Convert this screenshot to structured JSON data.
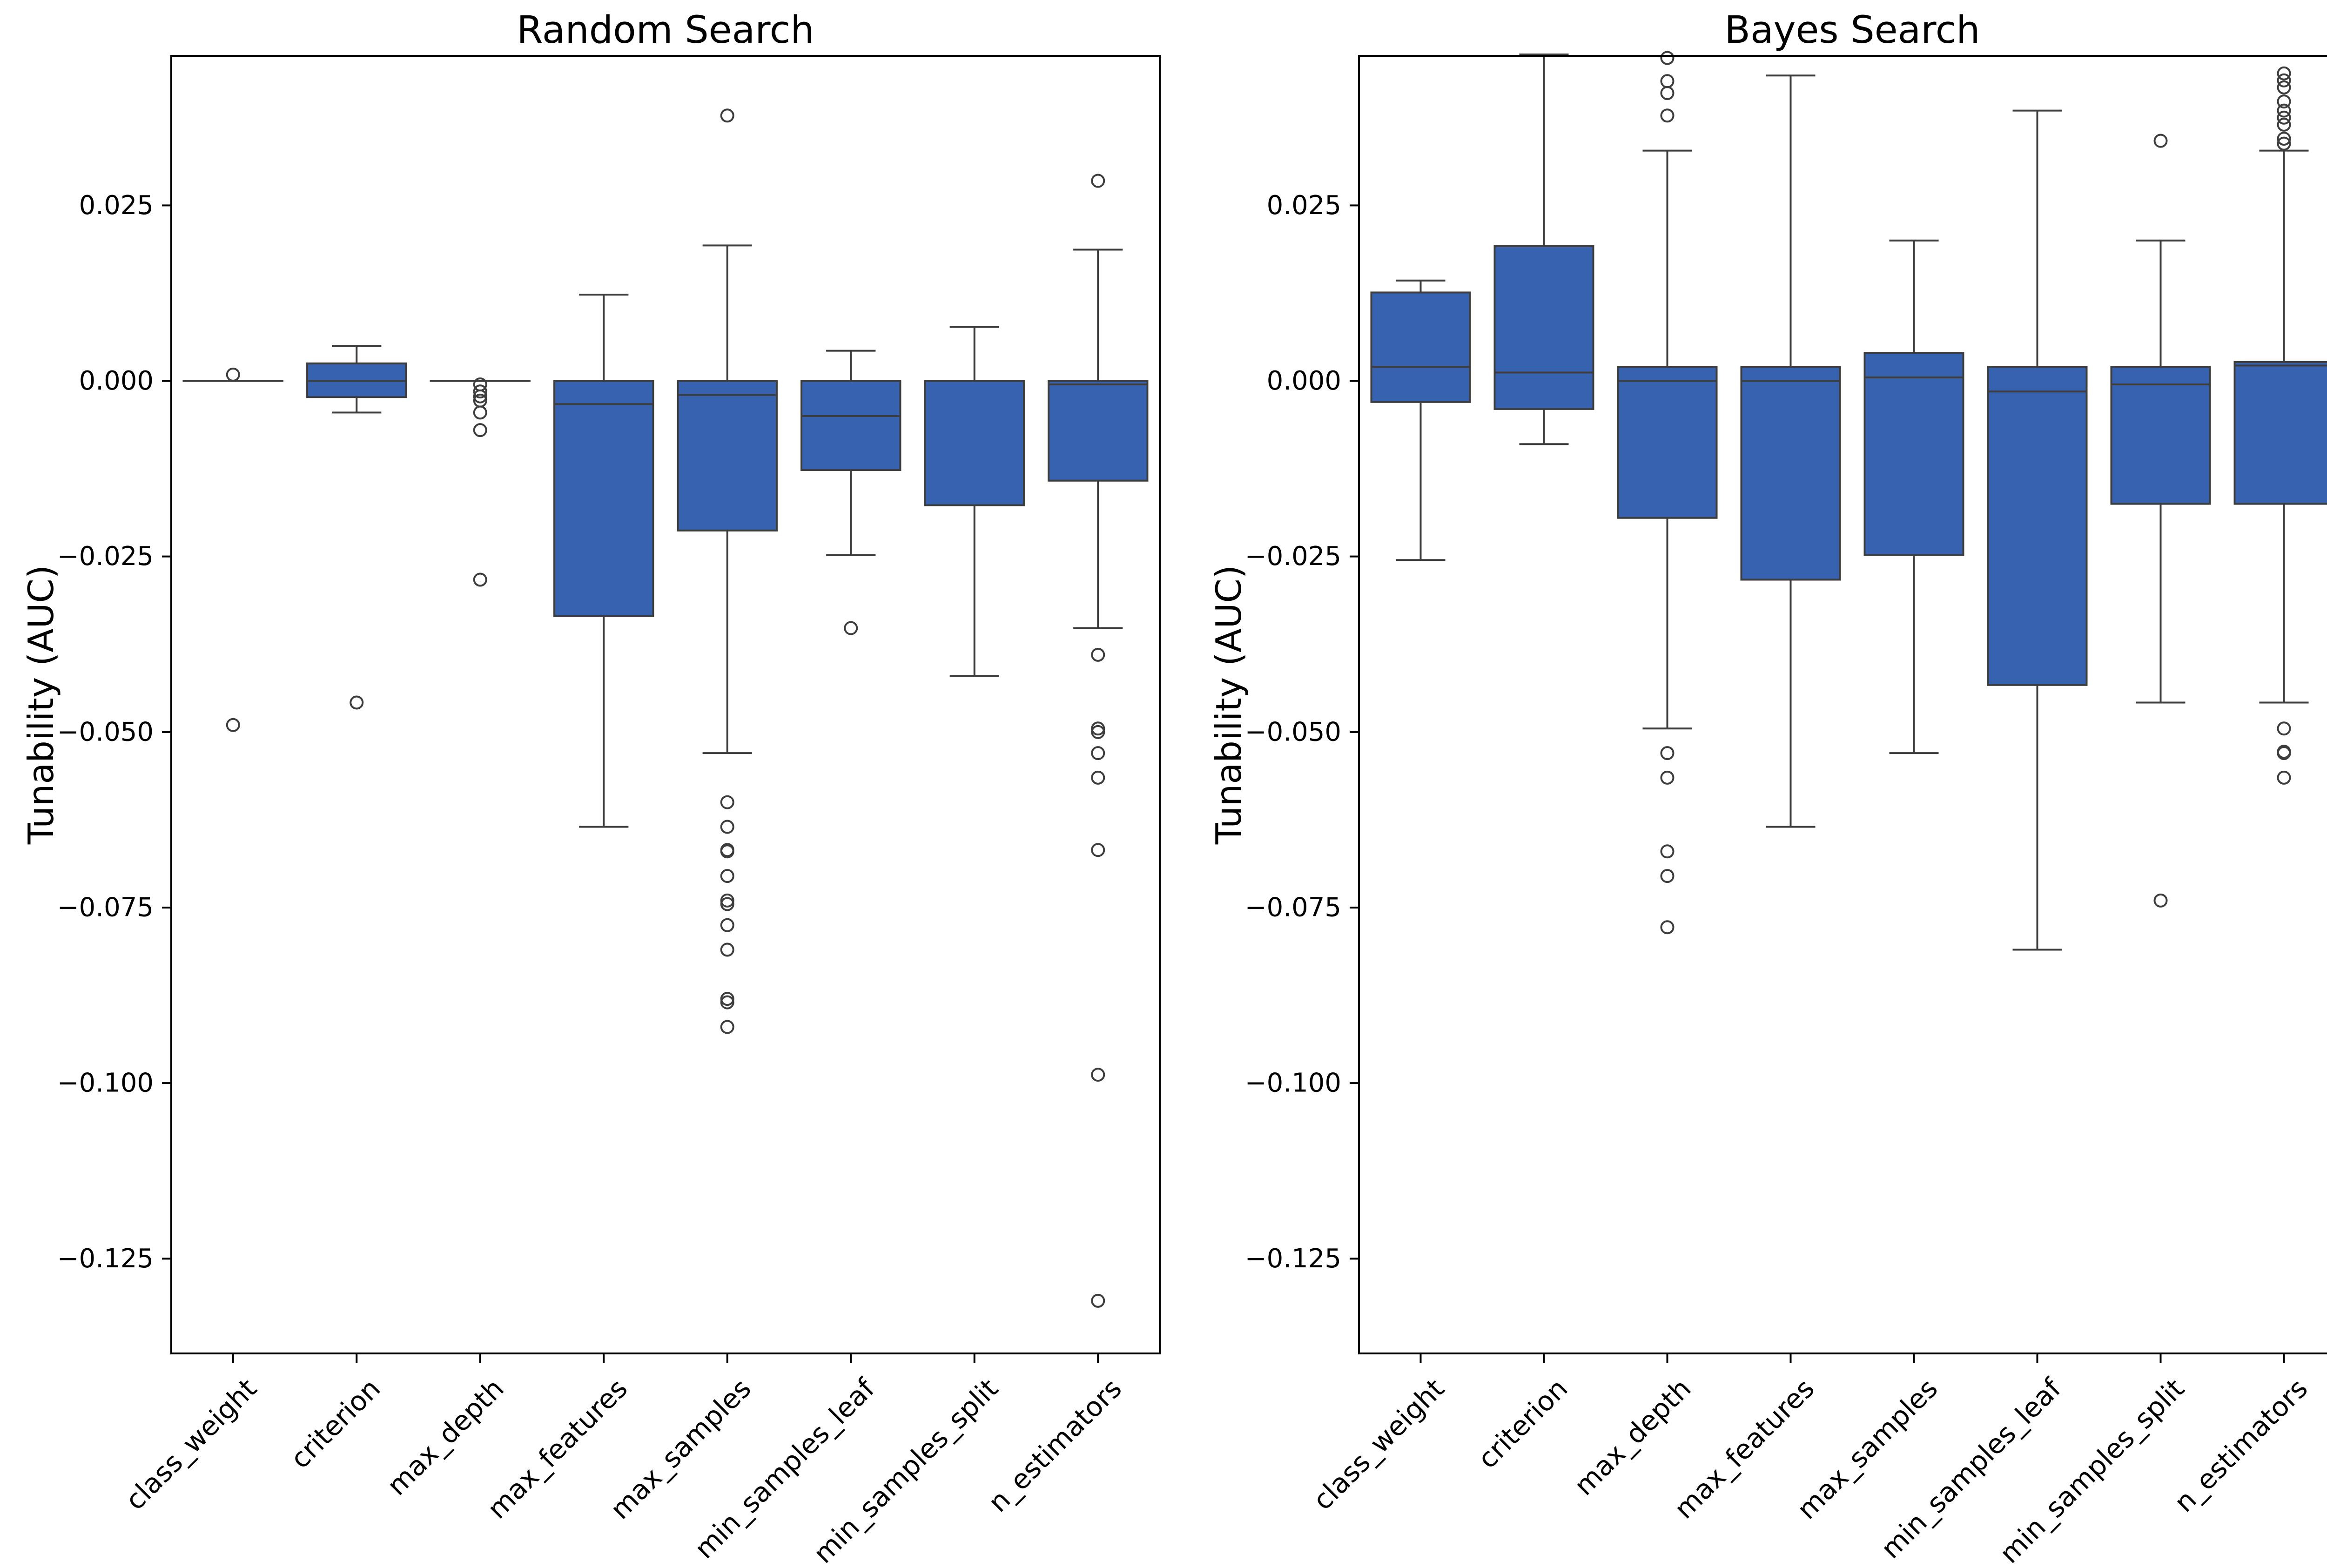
{
  "colors": {
    "box_fill": "#3662B0",
    "line": "#3d3d3d",
    "outlier_fill": "none"
  },
  "chart_data": [
    {
      "type": "box",
      "title": "Random Search",
      "ylabel": "Tunability (AUC)",
      "ylim": [
        -0.1385,
        0.0463
      ],
      "yticks": [
        0.025,
        0.0,
        -0.025,
        -0.05,
        -0.075,
        -0.1,
        -0.125
      ],
      "ytick_labels": [
        "0.025",
        "0.000",
        "−0.025",
        "−0.050",
        "−0.075",
        "−0.100",
        "−0.125"
      ],
      "categories": [
        "class_weight",
        "criterion",
        "max_depth",
        "max_features",
        "max_samples",
        "min_samples_leaf",
        "min_samples_split",
        "n_estimators"
      ],
      "boxes": [
        {
          "q1": 0.0,
          "median": 0.0,
          "q3": 0.0,
          "whislo": 0.0,
          "whishi": 0.0,
          "fliers": [
            0.0009,
            -0.049
          ]
        },
        {
          "q1": -0.0023,
          "median": 0.0,
          "q3": 0.0025,
          "whislo": -0.0045,
          "whishi": 0.005,
          "fliers": [
            -0.0458
          ]
        },
        {
          "q1": 0.0,
          "median": 0.0,
          "q3": 0.0,
          "whislo": 0.0,
          "whishi": 0.0,
          "fliers": [
            -0.0005,
            -0.0015,
            -0.0022,
            -0.0028,
            -0.0045,
            -0.007,
            -0.0283
          ]
        },
        {
          "q1": -0.0335,
          "median": -0.0033,
          "q3": 0.0,
          "whislo": -0.0635,
          "whishi": 0.0123,
          "fliers": []
        },
        {
          "q1": -0.0213,
          "median": -0.002,
          "q3": 0.0,
          "whislo": -0.053,
          "whishi": 0.0193,
          "fliers": [
            0.0378,
            -0.06,
            -0.0635,
            -0.0668,
            -0.067,
            -0.0705,
            -0.074,
            -0.0745,
            -0.0775,
            -0.081,
            -0.088,
            -0.0885,
            -0.092
          ]
        },
        {
          "q1": -0.0127,
          "median": -0.005,
          "q3": 0.0,
          "whislo": -0.0248,
          "whishi": 0.0043,
          "fliers": [
            -0.0352
          ]
        },
        {
          "q1": -0.0177,
          "median": 0.0,
          "q3": 0.0,
          "whislo": -0.042,
          "whishi": 0.0077,
          "fliers": []
        },
        {
          "q1": -0.0142,
          "median": -0.0005,
          "q3": 0.0,
          "whislo": -0.0352,
          "whishi": 0.0187,
          "fliers": [
            0.0285,
            -0.039,
            -0.0495,
            -0.05,
            -0.053,
            -0.0565,
            -0.0668,
            -0.0988,
            -0.131
          ]
        }
      ]
    },
    {
      "type": "box",
      "title": "Bayes Search",
      "ylabel": "Tunability (AUC)",
      "ylim": [
        -0.1385,
        0.0463
      ],
      "yticks": [
        0.025,
        0.0,
        -0.025,
        -0.05,
        -0.075,
        -0.1,
        -0.125
      ],
      "ytick_labels": [
        "0.025",
        "0.000",
        "−0.025",
        "−0.050",
        "−0.075",
        "−0.100",
        "−0.125"
      ],
      "categories": [
        "class_weight",
        "criterion",
        "max_depth",
        "max_features",
        "max_samples",
        "min_samples_leaf",
        "min_samples_split",
        "n_estimators"
      ],
      "boxes": [
        {
          "q1": -0.003,
          "median": 0.002,
          "q3": 0.0126,
          "whislo": -0.0255,
          "whishi": 0.0143,
          "fliers": []
        },
        {
          "q1": -0.004,
          "median": 0.0012,
          "q3": 0.0192,
          "whislo": -0.009,
          "whishi": 0.0465,
          "fliers": []
        },
        {
          "q1": -0.0195,
          "median": 0.0,
          "q3": 0.002,
          "whislo": -0.0495,
          "whishi": 0.0328,
          "fliers": [
            0.046,
            0.0427,
            0.041,
            0.0378,
            -0.053,
            -0.0565,
            -0.067,
            -0.0705,
            -0.0778
          ]
        },
        {
          "q1": -0.0283,
          "median": 0.0,
          "q3": 0.002,
          "whislo": -0.0635,
          "whishi": 0.0435,
          "fliers": []
        },
        {
          "q1": -0.0248,
          "median": 0.0005,
          "q3": 0.004,
          "whislo": -0.053,
          "whishi": 0.02,
          "fliers": []
        },
        {
          "q1": -0.0433,
          "median": -0.0015,
          "q3": 0.002,
          "whislo": -0.081,
          "whishi": 0.0385,
          "fliers": []
        },
        {
          "q1": -0.0175,
          "median": -0.0005,
          "q3": 0.002,
          "whislo": -0.0458,
          "whishi": 0.02,
          "fliers": [
            0.0342,
            -0.074
          ]
        },
        {
          "q1": -0.0175,
          "median": 0.0022,
          "q3": 0.0027,
          "whislo": -0.0458,
          "whishi": 0.0328,
          "fliers": [
            0.0438,
            0.0428,
            0.0418,
            0.0398,
            0.0385,
            0.0375,
            0.0365,
            0.0345,
            0.0338,
            -0.0495,
            -0.0528,
            -0.053,
            -0.0565
          ]
        }
      ]
    }
  ]
}
